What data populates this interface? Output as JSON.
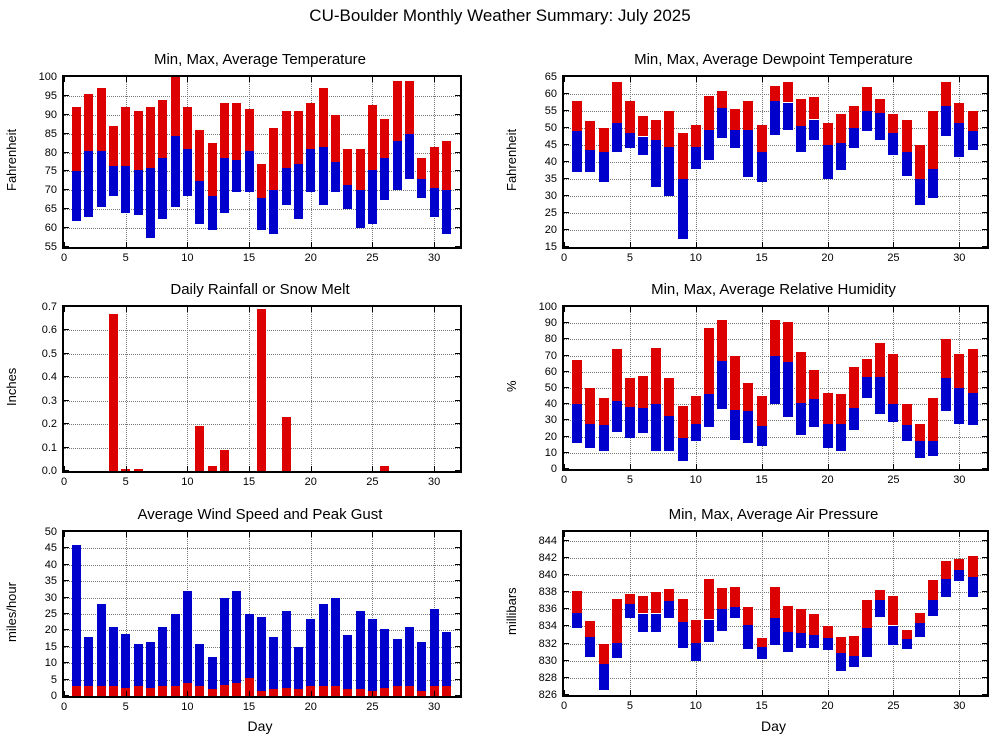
{
  "title": "CU-Boulder Monthly Weather Summary: July 2025",
  "colors": {
    "red": "#dd0000",
    "blue": "#0000cc",
    "border": "#000000"
  },
  "chart_data": [
    {
      "type": "range-bar",
      "title": "Min, Max, Average Temperature",
      "ylabel": "Fahrenheit",
      "xlabel": "",
      "ylim": [
        55,
        100
      ],
      "ytick_step": 5,
      "ydec": 0,
      "xlim": [
        0,
        32.1
      ],
      "xticks": [
        0,
        5,
        10,
        15,
        20,
        25,
        30
      ],
      "x": [
        1,
        2,
        3,
        4,
        5,
        6,
        7,
        8,
        9,
        10,
        11,
        12,
        13,
        14,
        15,
        16,
        17,
        18,
        19,
        20,
        21,
        22,
        23,
        24,
        25,
        26,
        27,
        28,
        29,
        30,
        31
      ],
      "min": [
        62,
        63,
        65.5,
        68.5,
        64,
        63.5,
        57.5,
        62.5,
        65.5,
        68.5,
        61,
        59.5,
        64,
        69.5,
        69.5,
        59.5,
        58.5,
        66,
        62.5,
        69.5,
        66,
        69.5,
        65,
        60,
        61,
        67.5,
        70,
        73,
        68,
        63,
        58.5
      ],
      "avg": [
        75,
        80.5,
        80.5,
        76.5,
        76.5,
        75.5,
        76,
        78.5,
        84.5,
        81,
        72.5,
        68.5,
        78.5,
        78,
        80.5,
        68,
        70,
        76,
        77,
        81,
        81.5,
        77.5,
        71.5,
        70,
        75.5,
        78.5,
        83,
        85,
        73,
        70.5,
        70
      ],
      "max": [
        92,
        95.5,
        97,
        87,
        92,
        91,
        92,
        94,
        100,
        92,
        86,
        82.5,
        93,
        93,
        91.5,
        77,
        86.5,
        91,
        91,
        93,
        97,
        90,
        81,
        81,
        92.5,
        89,
        99,
        99,
        78.5,
        81.5,
        83
      ]
    },
    {
      "type": "range-bar",
      "title": "Min, Max, Average Dewpoint Temperature",
      "ylabel": "Fahrenheit",
      "xlabel": "",
      "ylim": [
        15,
        65
      ],
      "ytick_step": 5,
      "ydec": 0,
      "xlim": [
        0,
        32.1
      ],
      "xticks": [
        0,
        5,
        10,
        15,
        20,
        25,
        30
      ],
      "x": [
        1,
        2,
        3,
        4,
        5,
        6,
        7,
        8,
        9,
        10,
        11,
        12,
        13,
        14,
        15,
        16,
        17,
        18,
        19,
        20,
        21,
        22,
        23,
        24,
        25,
        26,
        27,
        28,
        29,
        30,
        31
      ],
      "min": [
        37,
        37,
        34,
        43,
        44,
        42,
        32.5,
        30,
        17.5,
        38,
        40.5,
        47,
        44,
        35.5,
        34,
        48,
        49.5,
        43,
        46.5,
        35,
        37.5,
        44,
        49,
        46.5,
        42,
        36,
        27.5,
        29.5,
        47.5,
        41.5,
        43.5
      ],
      "avg": [
        49,
        43.5,
        43,
        51.5,
        48.5,
        47.5,
        46.5,
        44.5,
        35,
        44.5,
        49.5,
        56,
        49.5,
        49.5,
        43,
        58,
        57.5,
        50.5,
        52.5,
        45,
        45.5,
        50,
        55,
        54.5,
        48.5,
        43,
        35,
        38,
        56.5,
        51.5,
        49
      ],
      "max": [
        58,
        52,
        50,
        63.5,
        58,
        53.5,
        52.5,
        55,
        48.5,
        51,
        59.5,
        61,
        55.5,
        58,
        51,
        62.5,
        63.5,
        58.5,
        59,
        51.5,
        54,
        56.5,
        62,
        58.5,
        54,
        52.5,
        45,
        55,
        63.5,
        57.5,
        55
      ]
    },
    {
      "type": "bar",
      "title": "Daily Rainfall or Snow Melt",
      "ylabel": "Inches",
      "xlabel": "",
      "ylim": [
        0,
        0.7
      ],
      "ytick_step": 0.1,
      "ydec": 1,
      "xlim": [
        0,
        32.1
      ],
      "xticks": [
        0,
        5,
        10,
        15,
        20,
        25,
        30
      ],
      "x": [
        1,
        2,
        3,
        4,
        5,
        6,
        7,
        8,
        9,
        10,
        11,
        12,
        13,
        14,
        15,
        16,
        17,
        18,
        19,
        20,
        21,
        22,
        23,
        24,
        25,
        26,
        27,
        28,
        29,
        30,
        31
      ],
      "values": [
        0,
        0,
        0,
        0.67,
        0.01,
        0.01,
        0,
        0,
        0,
        0,
        0.19,
        0.02,
        0.09,
        0,
        0,
        0.69,
        0,
        0.23,
        0,
        0,
        0,
        0,
        0,
        0,
        0,
        0.02,
        0,
        0,
        0,
        0,
        0
      ]
    },
    {
      "type": "range-bar",
      "title": "Min, Max, Average Relative Humidity",
      "ylabel": "%",
      "xlabel": "",
      "ylim": [
        0,
        100
      ],
      "ytick_step": 10,
      "ydec": 0,
      "xlim": [
        0,
        32.1
      ],
      "xticks": [
        0,
        5,
        10,
        15,
        20,
        25,
        30
      ],
      "x": [
        1,
        2,
        3,
        4,
        5,
        6,
        7,
        8,
        9,
        10,
        11,
        12,
        13,
        14,
        15,
        16,
        17,
        18,
        19,
        20,
        21,
        22,
        23,
        24,
        25,
        26,
        27,
        28,
        29,
        30,
        31
      ],
      "min": [
        16,
        13,
        11,
        23,
        19,
        22,
        11,
        11,
        5,
        17,
        26,
        37,
        18,
        16,
        14,
        40,
        32,
        21,
        26,
        13,
        11,
        24,
        44,
        34,
        29,
        17,
        7,
        8,
        36,
        28,
        27
      ],
      "avg": [
        40,
        28,
        27,
        42,
        38.5,
        37.5,
        40,
        32.5,
        19,
        28,
        46.5,
        66.5,
        36.5,
        36,
        26.5,
        70,
        66,
        41,
        43.5,
        28,
        28,
        37.5,
        56.5,
        57,
        40,
        27,
        17,
        17.5,
        56,
        50,
        47
      ],
      "max": [
        67,
        50,
        44,
        74,
        56,
        57.5,
        75,
        56,
        39,
        45,
        87,
        92,
        70,
        53,
        45,
        92,
        91,
        72,
        61,
        47,
        46,
        63,
        68,
        78,
        71,
        40,
        28,
        44,
        80,
        71,
        74
      ]
    },
    {
      "type": "stacked-bar",
      "title": "Average Wind Speed and Peak Gust",
      "ylabel": "miles/hour",
      "xlabel": "Day",
      "ylim": [
        0,
        50
      ],
      "ytick_step": 5,
      "ydec": 0,
      "xlim": [
        0,
        32.1
      ],
      "xticks": [
        0,
        5,
        10,
        15,
        20,
        25,
        30
      ],
      "x": [
        1,
        2,
        3,
        4,
        5,
        6,
        7,
        8,
        9,
        10,
        11,
        12,
        13,
        14,
        15,
        16,
        17,
        18,
        19,
        20,
        21,
        22,
        23,
        24,
        25,
        26,
        27,
        28,
        29,
        30,
        31
      ],
      "avg_speed": [
        3,
        3,
        3,
        3,
        2.5,
        3,
        2.5,
        3,
        3,
        4,
        3,
        2,
        3.5,
        4,
        5.5,
        1.5,
        2,
        2.5,
        2,
        3,
        3,
        3,
        2,
        2,
        1.5,
        2.5,
        3,
        3,
        1.5,
        3,
        3
      ],
      "peak_gust": [
        46,
        18,
        28,
        21,
        19,
        16,
        16.5,
        21,
        25,
        32,
        16,
        12,
        30,
        32,
        25,
        24,
        18,
        26,
        15,
        23.5,
        28,
        30,
        18.5,
        26,
        23.5,
        20.5,
        17.5,
        21,
        16.5,
        26.5,
        19.5
      ]
    },
    {
      "type": "range-bar",
      "title": "Min, Max, Average Air Pressure",
      "ylabel": "millibars",
      "xlabel": "Day",
      "ylim": [
        826,
        845
      ],
      "ytick_step": 2,
      "ydec": 0,
      "xlim": [
        0,
        32.1
      ],
      "xticks": [
        0,
        5,
        10,
        15,
        20,
        25,
        30
      ],
      "x": [
        1,
        2,
        3,
        4,
        5,
        6,
        7,
        8,
        9,
        10,
        11,
        12,
        13,
        14,
        15,
        16,
        17,
        18,
        19,
        20,
        21,
        22,
        23,
        24,
        25,
        26,
        27,
        28,
        29,
        30,
        31
      ],
      "min": [
        833.8,
        830.4,
        826.6,
        830.3,
        835,
        833.4,
        833.3,
        835,
        831.5,
        830,
        832.2,
        833.5,
        835,
        831.4,
        830.2,
        831.8,
        831,
        831.5,
        831.5,
        831.3,
        828.8,
        829.3,
        830.4,
        835.1,
        831.8,
        831.4,
        832.8,
        835.2,
        837.4,
        839.3,
        837.4
      ],
      "avg": [
        835.6,
        832.8,
        829.6,
        832.1,
        836.6,
        835.5,
        835.5,
        837,
        834.5,
        832.1,
        834.8,
        836,
        836.2,
        834.2,
        831.6,
        835,
        833.4,
        833.2,
        833,
        832.7,
        830.9,
        830.5,
        833.8,
        837.1,
        834.1,
        832.5,
        834.4,
        837.1,
        839.5,
        840.6,
        839.8
      ],
      "max": [
        838.1,
        834.6,
        832,
        837.2,
        837.8,
        837.5,
        838,
        838.3,
        837.2,
        834.8,
        839.5,
        838.5,
        838.6,
        836.2,
        832.7,
        838.6,
        836.4,
        836,
        835.4,
        834,
        832.8,
        832.9,
        837.1,
        838.2,
        837.5,
        833.6,
        835.6,
        839.4,
        841.6,
        841.9,
        842.2
      ]
    }
  ]
}
